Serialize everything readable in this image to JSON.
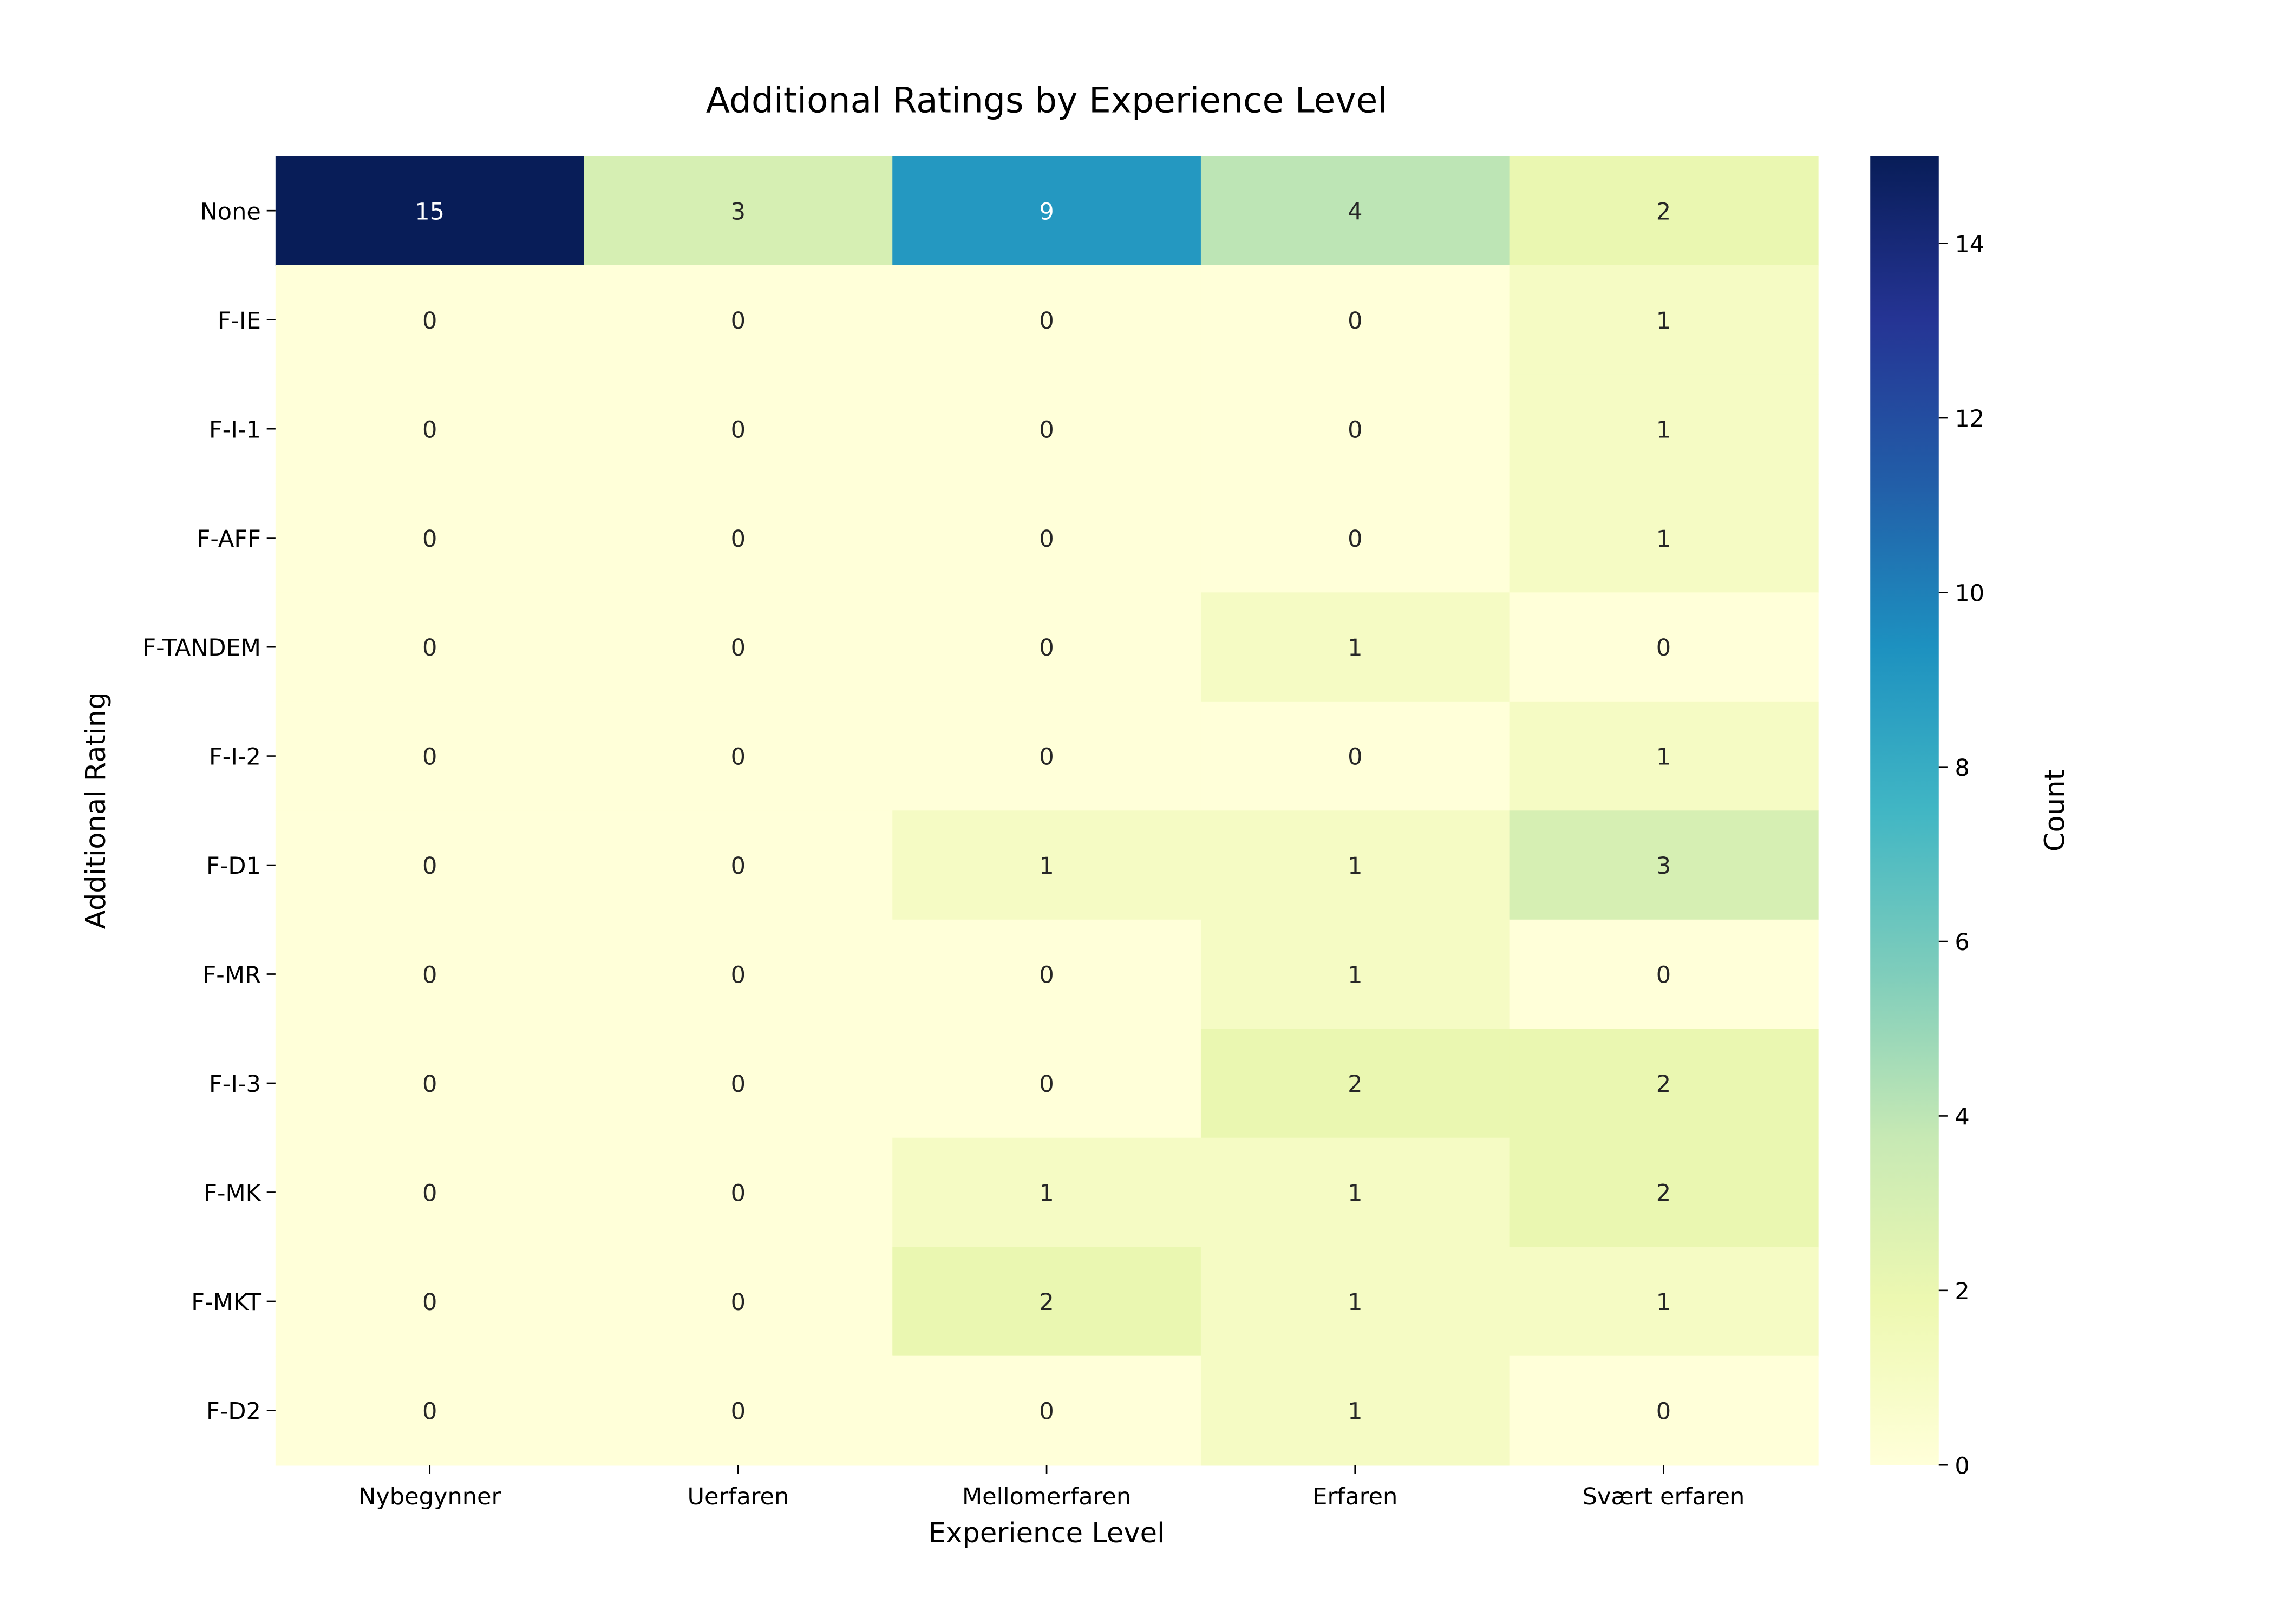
{
  "chart_data": {
    "type": "heatmap",
    "title": "Additional Ratings by Experience Level",
    "xlabel": "Experience Level",
    "ylabel": "Additional Rating",
    "x_categories": [
      "Nybegynner",
      "Uerfaren",
      "Mellomerfaren",
      "Erfaren",
      "Svært erfaren"
    ],
    "y_categories": [
      "None",
      "F-IE",
      "F-I-1",
      "F-AFF",
      "F-TANDEM",
      "F-I-2",
      "F-D1",
      "F-MR",
      "F-I-3",
      "F-MK",
      "F-MKT",
      "F-D2"
    ],
    "values": [
      [
        15,
        3,
        9,
        4,
        2
      ],
      [
        0,
        0,
        0,
        0,
        1
      ],
      [
        0,
        0,
        0,
        0,
        1
      ],
      [
        0,
        0,
        0,
        0,
        1
      ],
      [
        0,
        0,
        0,
        1,
        0
      ],
      [
        0,
        0,
        0,
        0,
        1
      ],
      [
        0,
        0,
        1,
        1,
        3
      ],
      [
        0,
        0,
        0,
        1,
        0
      ],
      [
        0,
        0,
        0,
        2,
        2
      ],
      [
        0,
        0,
        1,
        1,
        2
      ],
      [
        0,
        0,
        2,
        1,
        1
      ],
      [
        0,
        0,
        0,
        1,
        0
      ]
    ],
    "colormap": "YlGnBu",
    "colorbar": {
      "label": "Count",
      "range": [
        0,
        15
      ],
      "ticks": [
        0,
        2,
        4,
        6,
        8,
        10,
        12,
        14
      ]
    },
    "annotated": true,
    "grid": false
  }
}
